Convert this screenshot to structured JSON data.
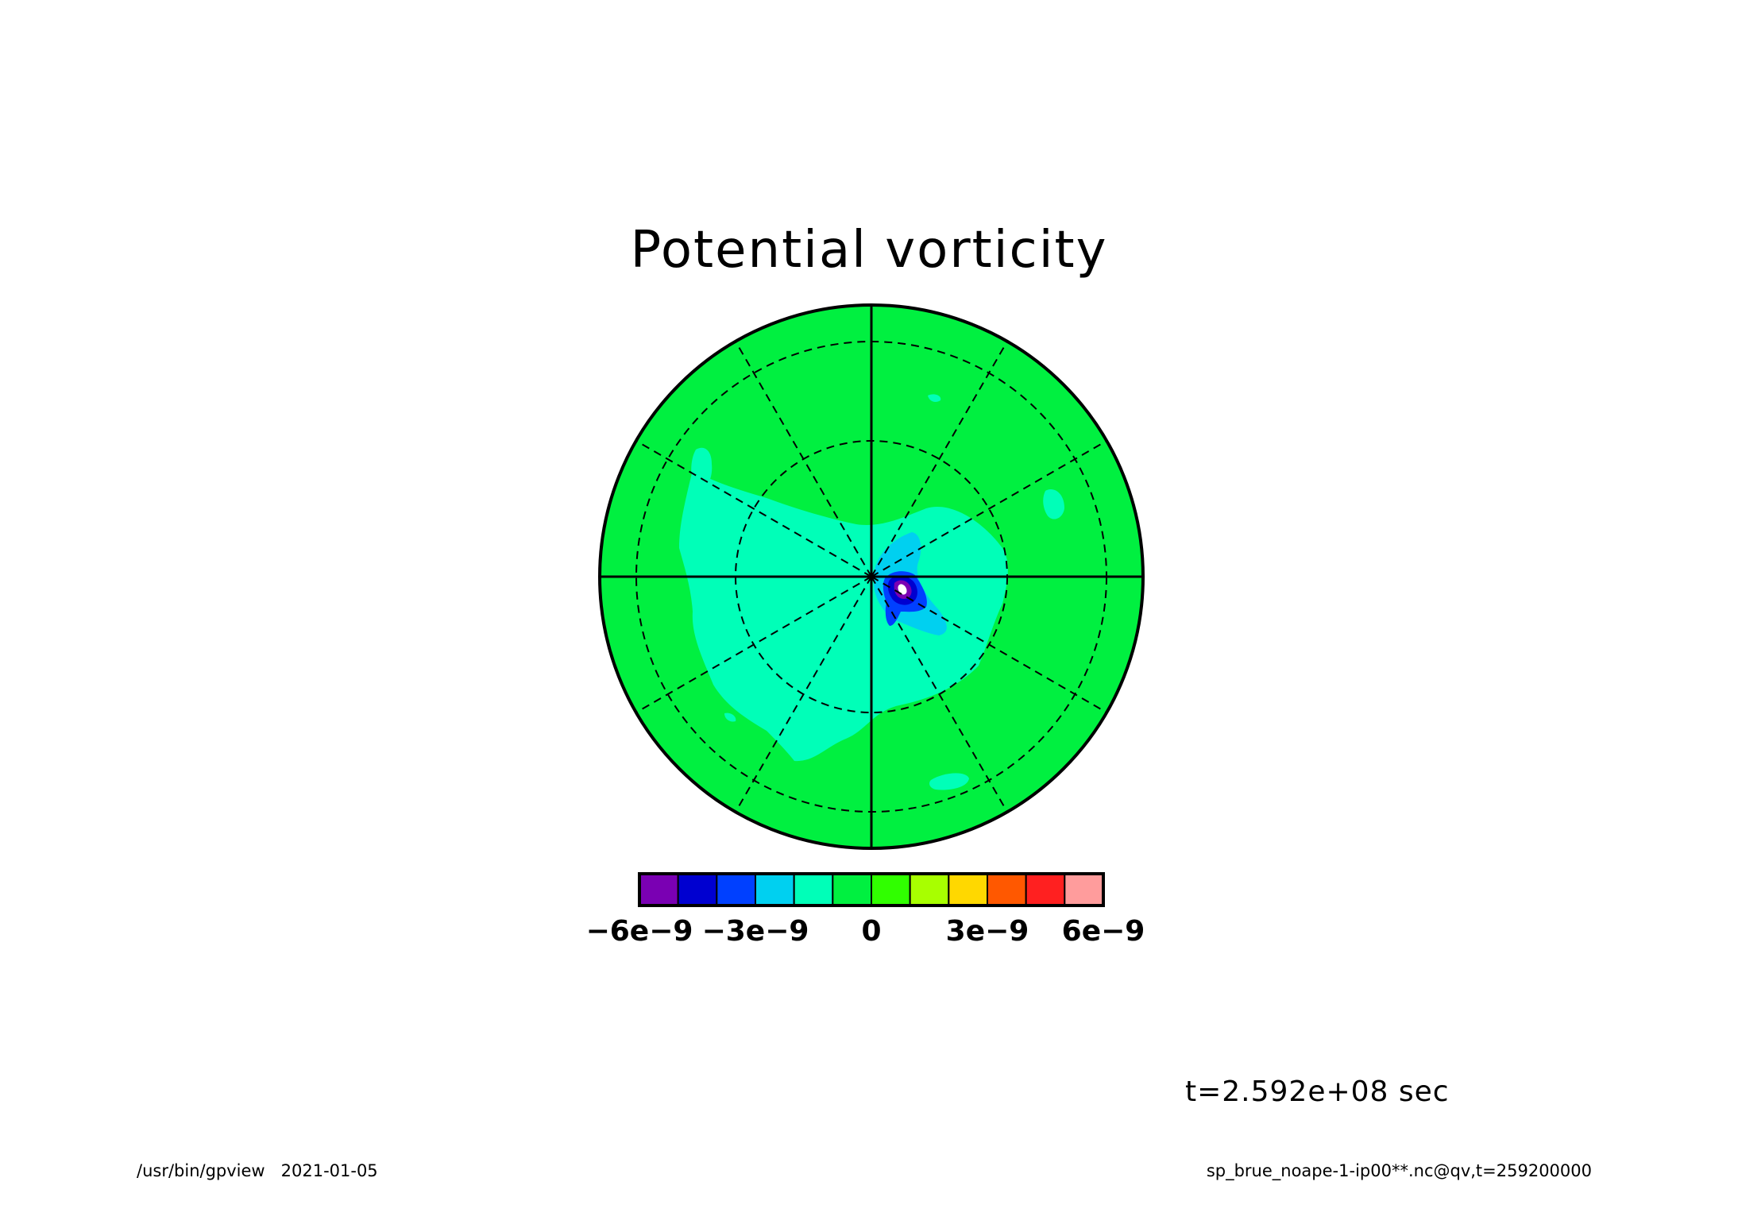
{
  "chart_data": {
    "type": "heatmap",
    "projection": "polar stereographic",
    "title": "Potential vorticity",
    "colorbar": {
      "levels": [
        -6e-09,
        -5e-09,
        -4e-09,
        -3e-09,
        -2e-09,
        -1e-09,
        0,
        1e-09,
        2e-09,
        3e-09,
        4e-09,
        5e-09,
        6e-09
      ],
      "colors": [
        "#7a00b3",
        "#0000d0",
        "#0040ff",
        "#00d0f0",
        "#00ffb8",
        "#00f040",
        "#30ff00",
        "#a8ff00",
        "#ffd800",
        "#ff5800",
        "#ff2020",
        "#ff9c9c"
      ],
      "tick_labels": [
        "−6e−9",
        "−3e−9",
        "0",
        "3e−9",
        "6e−9"
      ]
    },
    "grid": "on",
    "annotations": {
      "time": "t=2.592e+08 sec"
    }
  },
  "footer": {
    "left": "/usr/bin/gpview   2021-01-05",
    "right": "sp_brue_noape-1-ip00**.nc@qv,t=259200000"
  }
}
